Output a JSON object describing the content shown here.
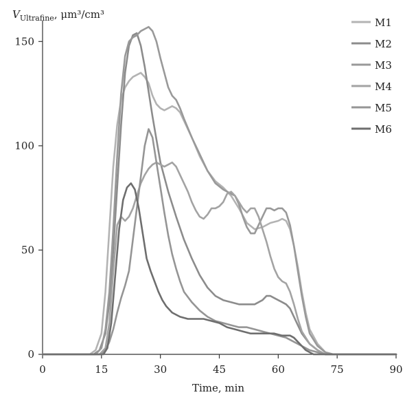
{
  "chart_data": {
    "type": "line",
    "title": "",
    "ylabel_parts": {
      "symbol": "V",
      "subscript": "Ultrafine",
      "unit": ", μm³/cm³"
    },
    "xlabel": "Time, min",
    "xlim": [
      0,
      90
    ],
    "ylim": [
      0,
      160
    ],
    "x_ticks": [
      0,
      15,
      30,
      45,
      60,
      75,
      90
    ],
    "y_ticks": [
      0,
      50,
      100,
      150
    ],
    "grid": false,
    "legend_position": "top-right",
    "series": [
      {
        "name": "M1",
        "color": "#b3b3b3",
        "points": [
          [
            0,
            0
          ],
          [
            12,
            0
          ],
          [
            13.5,
            2
          ],
          [
            15,
            10
          ],
          [
            16,
            30
          ],
          [
            17,
            60
          ],
          [
            18,
            90
          ],
          [
            19,
            110
          ],
          [
            20,
            122
          ],
          [
            21,
            128
          ],
          [
            22,
            131
          ],
          [
            23,
            133
          ],
          [
            24,
            134
          ],
          [
            25,
            135
          ],
          [
            26,
            133
          ],
          [
            27,
            130
          ],
          [
            28,
            124
          ],
          [
            29,
            120
          ],
          [
            30,
            118
          ],
          [
            31,
            117
          ],
          [
            32,
            118
          ],
          [
            33,
            119
          ],
          [
            34,
            118
          ],
          [
            35,
            116
          ],
          [
            36,
            112
          ],
          [
            38,
            104
          ],
          [
            40,
            95
          ],
          [
            42,
            88
          ],
          [
            44,
            83
          ],
          [
            46,
            80
          ],
          [
            48,
            76
          ],
          [
            50,
            70
          ],
          [
            52,
            63
          ],
          [
            54,
            60
          ],
          [
            56,
            61
          ],
          [
            58,
            63
          ],
          [
            60,
            64
          ],
          [
            61,
            65
          ],
          [
            62,
            64
          ],
          [
            63,
            60
          ],
          [
            64,
            52
          ],
          [
            65,
            42
          ],
          [
            66,
            30
          ],
          [
            67,
            20
          ],
          [
            68,
            12
          ],
          [
            70,
            5
          ],
          [
            72,
            1
          ],
          [
            74,
            0
          ],
          [
            90,
            0
          ]
        ]
      },
      {
        "name": "M2",
        "color": "#8c8c8c",
        "points": [
          [
            0,
            0
          ],
          [
            13,
            0
          ],
          [
            14.5,
            2
          ],
          [
            16,
            10
          ],
          [
            17,
            25
          ],
          [
            18,
            50
          ],
          [
            19,
            80
          ],
          [
            20,
            110
          ],
          [
            21,
            135
          ],
          [
            22,
            148
          ],
          [
            23,
            153
          ],
          [
            24,
            154
          ],
          [
            25,
            148
          ],
          [
            26,
            138
          ],
          [
            27,
            126
          ],
          [
            28,
            114
          ],
          [
            29,
            103
          ],
          [
            30,
            92
          ],
          [
            32,
            78
          ],
          [
            34,
            66
          ],
          [
            36,
            55
          ],
          [
            38,
            46
          ],
          [
            40,
            38
          ],
          [
            42,
            32
          ],
          [
            44,
            28
          ],
          [
            46,
            26
          ],
          [
            48,
            25
          ],
          [
            50,
            24
          ],
          [
            52,
            24
          ],
          [
            54,
            24
          ],
          [
            56,
            26
          ],
          [
            57,
            28
          ],
          [
            58,
            28
          ],
          [
            59,
            27
          ],
          [
            60,
            26
          ],
          [
            61,
            25
          ],
          [
            62,
            24
          ],
          [
            63,
            22
          ],
          [
            64,
            18
          ],
          [
            65,
            14
          ],
          [
            66,
            10
          ],
          [
            68,
            5
          ],
          [
            70,
            2
          ],
          [
            72,
            0
          ],
          [
            90,
            0
          ]
        ]
      },
      {
        "name": "M3",
        "color": "#999999",
        "points": [
          [
            0,
            0
          ],
          [
            13.5,
            0
          ],
          [
            15,
            3
          ],
          [
            16,
            12
          ],
          [
            17,
            30
          ],
          [
            18,
            60
          ],
          [
            19,
            95
          ],
          [
            20,
            125
          ],
          [
            21,
            143
          ],
          [
            22,
            150
          ],
          [
            23,
            152
          ],
          [
            24,
            153
          ],
          [
            25,
            155
          ],
          [
            26,
            156
          ],
          [
            27,
            157
          ],
          [
            28,
            155
          ],
          [
            29,
            150
          ],
          [
            30,
            142
          ],
          [
            31,
            135
          ],
          [
            32,
            128
          ],
          [
            33,
            124
          ],
          [
            34,
            122
          ],
          [
            35,
            118
          ],
          [
            36,
            113
          ],
          [
            38,
            104
          ],
          [
            40,
            96
          ],
          [
            42,
            88
          ],
          [
            44,
            82
          ],
          [
            46,
            79
          ],
          [
            48,
            77
          ],
          [
            49,
            76
          ],
          [
            50,
            72
          ],
          [
            51,
            66
          ],
          [
            52,
            61
          ],
          [
            53,
            58
          ],
          [
            54,
            58
          ],
          [
            55,
            62
          ],
          [
            56,
            66
          ],
          [
            57,
            70
          ],
          [
            58,
            70
          ],
          [
            59,
            69
          ],
          [
            60,
            70
          ],
          [
            61,
            70
          ],
          [
            62,
            68
          ],
          [
            63,
            62
          ],
          [
            64,
            52
          ],
          [
            65,
            40
          ],
          [
            66,
            28
          ],
          [
            67,
            18
          ],
          [
            68,
            10
          ],
          [
            70,
            4
          ],
          [
            72,
            1
          ],
          [
            74,
            0
          ],
          [
            90,
            0
          ]
        ]
      },
      {
        "name": "M4",
        "color": "#a3a3a3",
        "points": [
          [
            0,
            0
          ],
          [
            14.5,
            0
          ],
          [
            16,
            3
          ],
          [
            17,
            15
          ],
          [
            18,
            40
          ],
          [
            19,
            62
          ],
          [
            20,
            66
          ],
          [
            21,
            64
          ],
          [
            22,
            66
          ],
          [
            23,
            70
          ],
          [
            24,
            76
          ],
          [
            25,
            82
          ],
          [
            26,
            86
          ],
          [
            27,
            89
          ],
          [
            28,
            91
          ],
          [
            29,
            92
          ],
          [
            30,
            91
          ],
          [
            31,
            90
          ],
          [
            32,
            91
          ],
          [
            33,
            92
          ],
          [
            34,
            90
          ],
          [
            35,
            86
          ],
          [
            36,
            82
          ],
          [
            37,
            78
          ],
          [
            38,
            73
          ],
          [
            39,
            69
          ],
          [
            40,
            66
          ],
          [
            41,
            65
          ],
          [
            42,
            67
          ],
          [
            43,
            70
          ],
          [
            44,
            70
          ],
          [
            45,
            71
          ],
          [
            46,
            73
          ],
          [
            47,
            77
          ],
          [
            48,
            78
          ],
          [
            49,
            76
          ],
          [
            50,
            73
          ],
          [
            51,
            70
          ],
          [
            52,
            68
          ],
          [
            53,
            70
          ],
          [
            54,
            70
          ],
          [
            55,
            66
          ],
          [
            56,
            60
          ],
          [
            57,
            54
          ],
          [
            58,
            47
          ],
          [
            59,
            41
          ],
          [
            60,
            37
          ],
          [
            61,
            35
          ],
          [
            62,
            34
          ],
          [
            63,
            30
          ],
          [
            64,
            24
          ],
          [
            65,
            17
          ],
          [
            66,
            11
          ],
          [
            68,
            5
          ],
          [
            70,
            2
          ],
          [
            72,
            0
          ],
          [
            90,
            0
          ]
        ]
      },
      {
        "name": "M5",
        "color": "#959595",
        "points": [
          [
            0,
            0
          ],
          [
            15,
            0
          ],
          [
            16,
            2
          ],
          [
            17,
            6
          ],
          [
            18,
            12
          ],
          [
            19,
            20
          ],
          [
            20,
            27
          ],
          [
            21,
            33
          ],
          [
            22,
            40
          ],
          [
            23,
            55
          ],
          [
            24,
            70
          ],
          [
            25,
            85
          ],
          [
            26,
            100
          ],
          [
            27,
            108
          ],
          [
            28,
            104
          ],
          [
            29,
            92
          ],
          [
            30,
            80
          ],
          [
            31,
            68
          ],
          [
            32,
            57
          ],
          [
            33,
            48
          ],
          [
            34,
            41
          ],
          [
            35,
            35
          ],
          [
            36,
            30
          ],
          [
            38,
            25
          ],
          [
            40,
            21
          ],
          [
            42,
            18
          ],
          [
            44,
            16
          ],
          [
            46,
            15
          ],
          [
            48,
            14
          ],
          [
            50,
            13
          ],
          [
            52,
            13
          ],
          [
            54,
            12
          ],
          [
            56,
            11
          ],
          [
            58,
            10
          ],
          [
            60,
            9
          ],
          [
            62,
            8
          ],
          [
            64,
            6
          ],
          [
            66,
            4
          ],
          [
            68,
            2
          ],
          [
            70,
            1
          ],
          [
            72,
            0
          ],
          [
            90,
            0
          ]
        ]
      },
      {
        "name": "M6",
        "color": "#6e6e6e",
        "points": [
          [
            0,
            0
          ],
          [
            15.5,
            0
          ],
          [
            16.5,
            3
          ],
          [
            17.5,
            15
          ],
          [
            18.5,
            38
          ],
          [
            19.5,
            60
          ],
          [
            20.5,
            74
          ],
          [
            21.5,
            80
          ],
          [
            22.5,
            82
          ],
          [
            23.5,
            79
          ],
          [
            24.5,
            70
          ],
          [
            25.5,
            58
          ],
          [
            26.5,
            46
          ],
          [
            27.5,
            40
          ],
          [
            28.5,
            35
          ],
          [
            29.5,
            30
          ],
          [
            30.5,
            26
          ],
          [
            31.5,
            23
          ],
          [
            33,
            20
          ],
          [
            35,
            18
          ],
          [
            37,
            17
          ],
          [
            39,
            17
          ],
          [
            41,
            17
          ],
          [
            43,
            16
          ],
          [
            45,
            15
          ],
          [
            47,
            13
          ],
          [
            49,
            12
          ],
          [
            51,
            11
          ],
          [
            53,
            10
          ],
          [
            55,
            10
          ],
          [
            57,
            10
          ],
          [
            59,
            10
          ],
          [
            61,
            9
          ],
          [
            63,
            9
          ],
          [
            64,
            8
          ],
          [
            65,
            6
          ],
          [
            66,
            4
          ],
          [
            67,
            2
          ],
          [
            68,
            1
          ],
          [
            69,
            0
          ],
          [
            90,
            0
          ]
        ]
      }
    ]
  }
}
